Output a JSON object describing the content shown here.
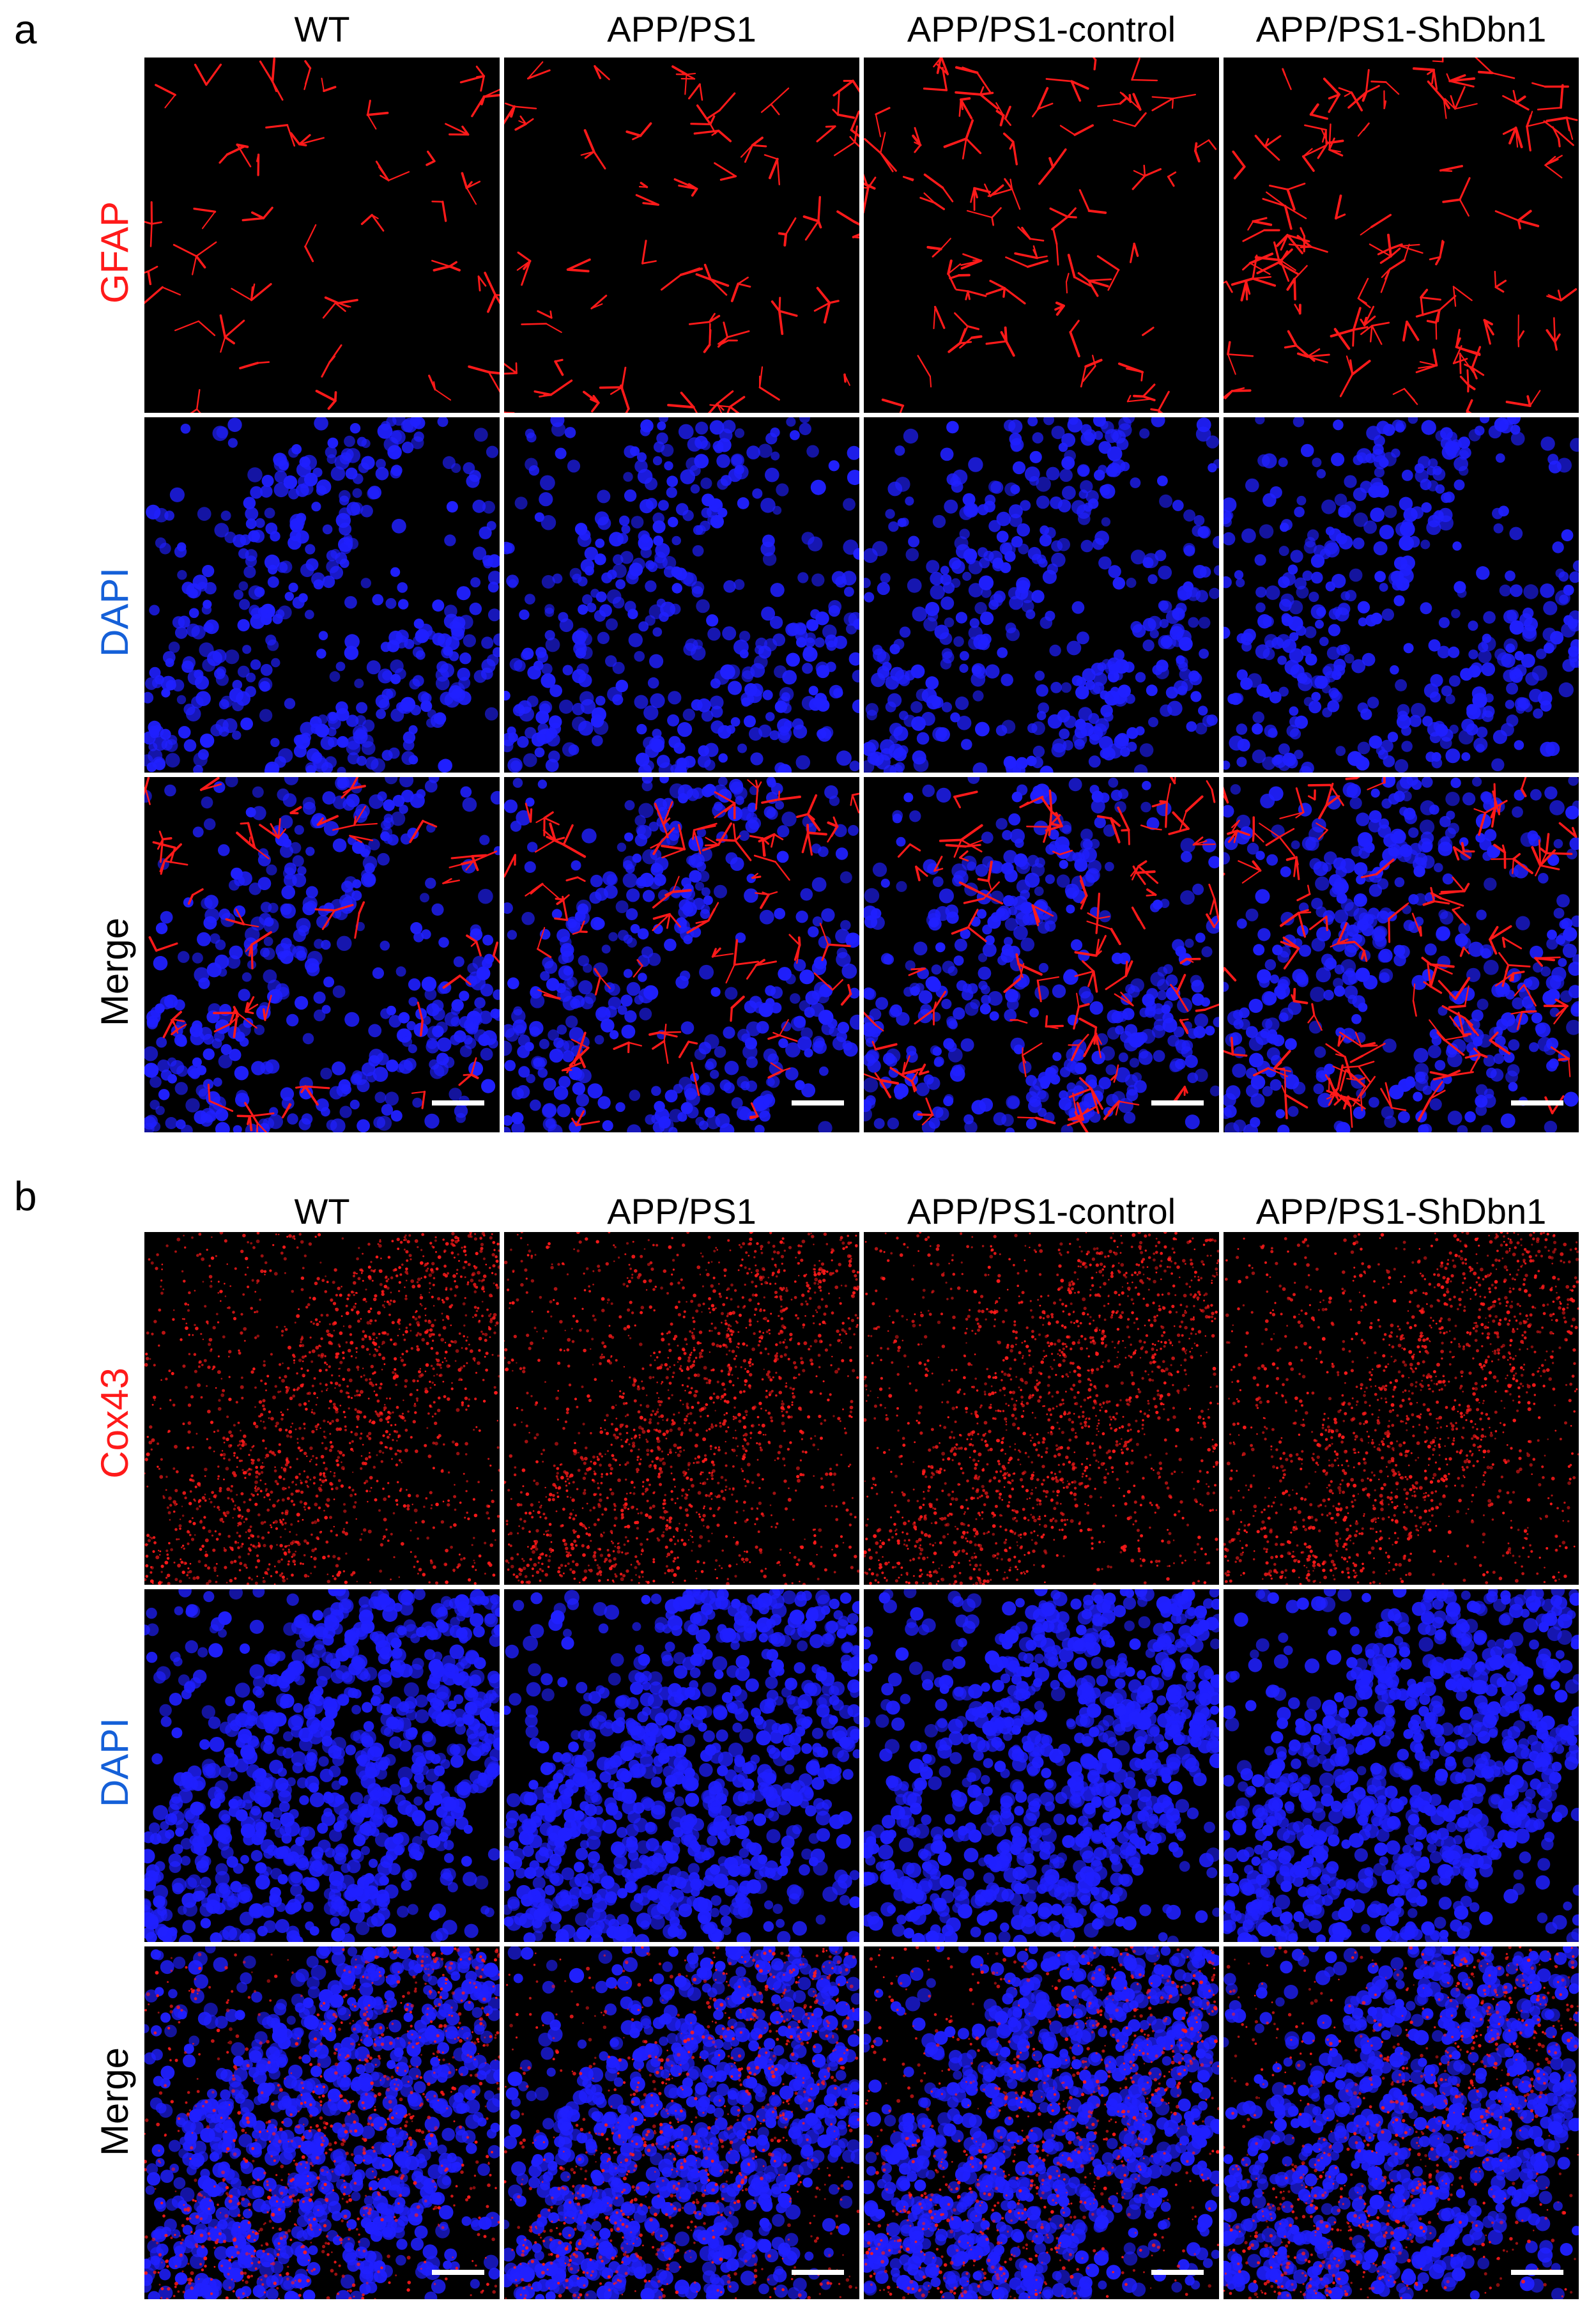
{
  "panel_a": {
    "letter": "a",
    "columns": [
      "WT",
      "APP/PS1",
      "APP/PS1-control",
      "APP/PS1-ShDbn1"
    ],
    "rows": [
      {
        "label": "GFAP",
        "color": "#ff1a1a",
        "channel": "red"
      },
      {
        "label": "DAPI",
        "color": "#1560d8",
        "channel": "blue"
      },
      {
        "label": "Merge",
        "color": "#000000",
        "channel": "merge"
      }
    ]
  },
  "panel_b": {
    "letter": "b",
    "columns": [
      "WT",
      "APP/PS1",
      "APP/PS1-control",
      "APP/PS1-ShDbn1"
    ],
    "rows": [
      {
        "label": "Cox43",
        "color": "#ff1a1a",
        "channel": "red"
      },
      {
        "label": "DAPI",
        "color": "#1560d8",
        "channel": "blue"
      },
      {
        "label": "Merge",
        "color": "#000000",
        "channel": "merge"
      }
    ]
  },
  "colors": {
    "red_signal": "#ff1a1a",
    "blue_signal": "#2020ff",
    "background": "#000000",
    "scalebar": "#ffffff"
  }
}
